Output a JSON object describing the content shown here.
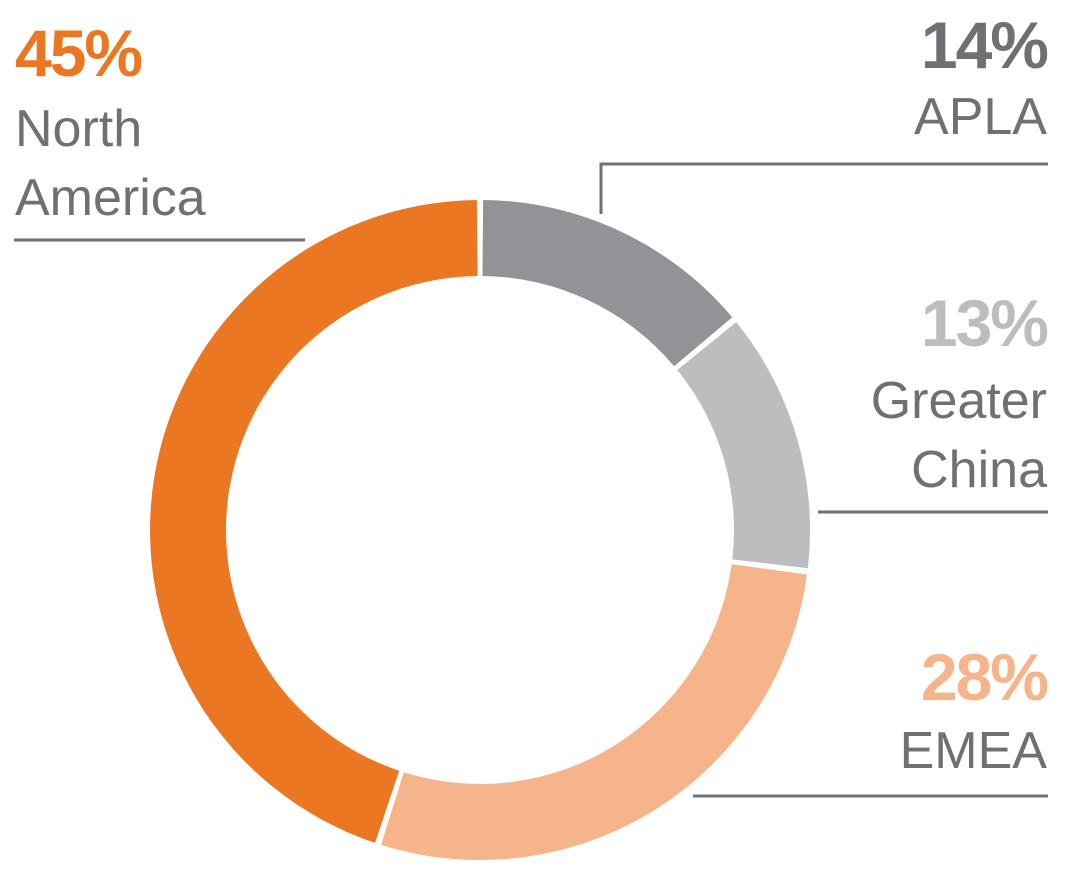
{
  "chart_data": {
    "type": "pie",
    "variant": "donut",
    "title": "",
    "slices": [
      {
        "name": "APLA",
        "label_lines": [
          "APLA"
        ],
        "value": 14,
        "value_label": "14%",
        "color": "#929396",
        "text_color": "#6f7073"
      },
      {
        "name": "Greater China",
        "label_lines": [
          "Greater",
          "China"
        ],
        "value": 13,
        "value_label": "13%",
        "color": "#bcbdbf",
        "text_color": "#bcbdbf"
      },
      {
        "name": "EMEA",
        "label_lines": [
          "EMEA"
        ],
        "value": 28,
        "value_label": "28%",
        "color": "#f5b48a",
        "text_color": "#f5b48a"
      },
      {
        "name": "North America",
        "label_lines": [
          "North",
          "America"
        ],
        "value": 45,
        "value_label": "45%",
        "color": "#ec7722",
        "text_color": "#ec7722"
      }
    ],
    "label_color": "#6f7073",
    "leader_color": "#6f7073",
    "legend": "none"
  }
}
